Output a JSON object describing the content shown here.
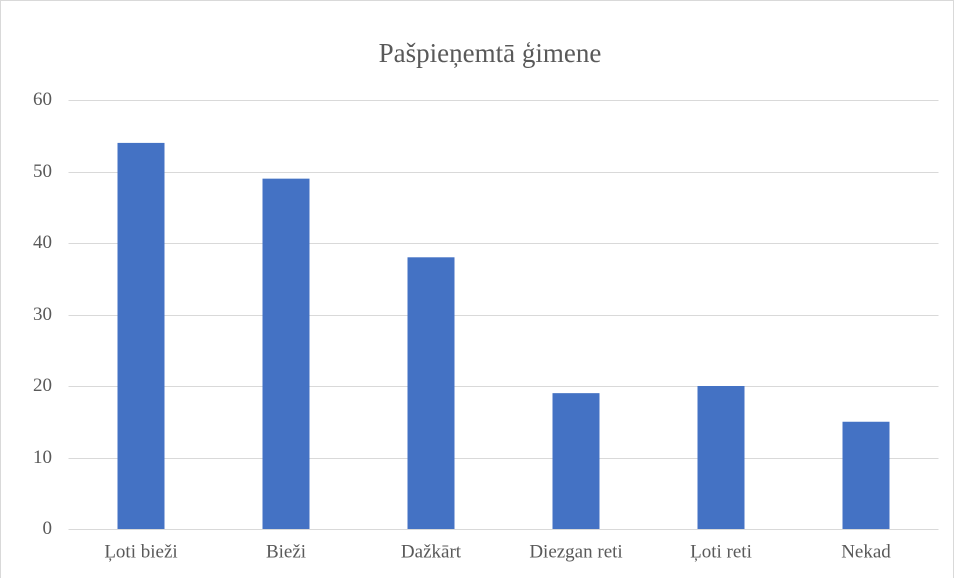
{
  "chart_data": {
    "type": "bar",
    "title": "Pašpieņemtā ģimene",
    "categories": [
      "Ļoti bieži",
      "Bieži",
      "Dažkārt",
      "Diezgan reti",
      "Ļoti reti",
      "Nekad"
    ],
    "values": [
      54,
      49,
      38,
      19,
      20,
      15
    ],
    "color": "#4472c4",
    "ylim": [
      0,
      60
    ],
    "yticks": [
      0,
      10,
      20,
      30,
      40,
      50,
      60
    ],
    "grid": true
  }
}
